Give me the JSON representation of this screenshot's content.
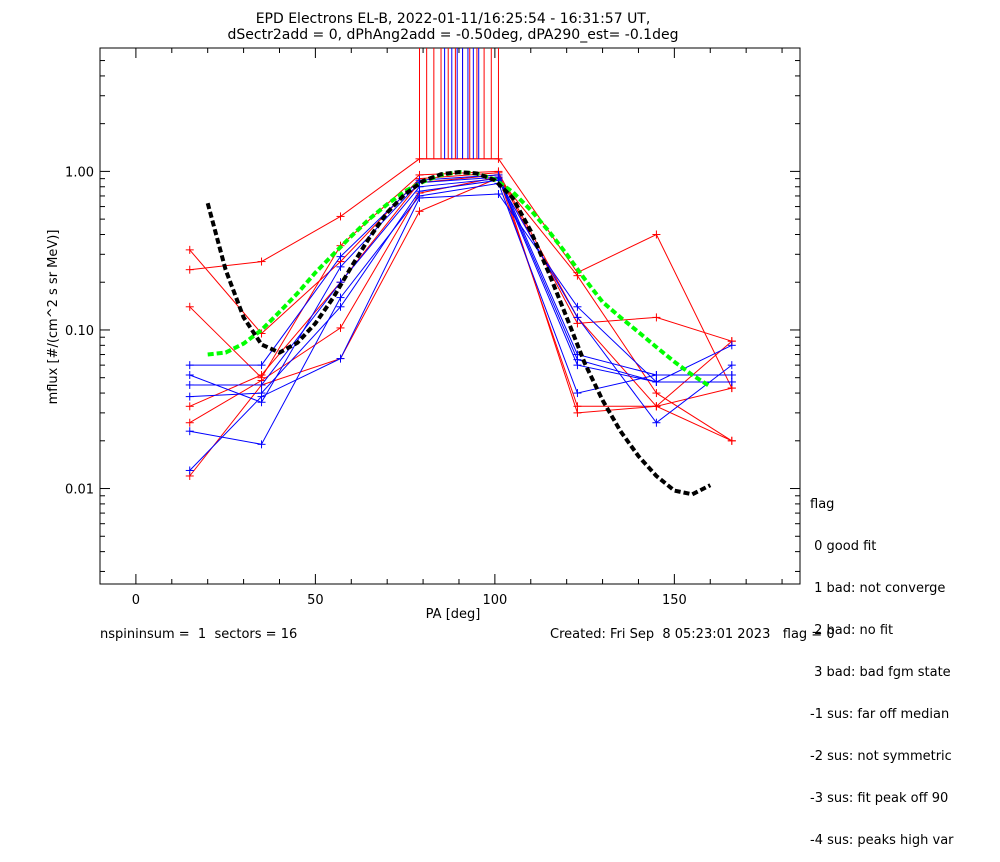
{
  "chart_data": {
    "type": "line",
    "title_lines": [
      "EPD Electrons EL-B, 2022-01-11/16:25:54 - 16:31:57 UT,",
      "dSectr2add = 0, dPhAng2add = -0.50deg, dPA290_est=  -0.1deg"
    ],
    "xlabel": "PA [deg]",
    "ylabel": "mflux [#/(cm^2 s sr MeV)]",
    "x_scale": "linear",
    "y_scale": "log",
    "xlim": [
      -10,
      185
    ],
    "ylim": [
      0.0025,
      6.0
    ],
    "x_ticks": [
      0,
      50,
      100,
      150
    ],
    "y_ticks": [
      0.01,
      0.1,
      1.0
    ],
    "y_tick_labels": [
      "0.01",
      "0.10",
      "1.00"
    ],
    "grid": false,
    "colors": {
      "red": "#ff0000",
      "blue": "#0000ff",
      "black": "#000000",
      "green": "#00ff00"
    },
    "red_series": [
      {
        "x": [
          15,
          35,
          57,
          79,
          101,
          123,
          145,
          166
        ],
        "y": [
          0.32,
          0.095,
          0.27,
          0.9,
          0.98,
          0.12,
          0.033,
          0.043
        ]
      },
      {
        "x": [
          15,
          35,
          57,
          79,
          101,
          123,
          145,
          166
        ],
        "y": [
          0.24,
          0.27,
          0.52,
          1.2,
          1.2,
          0.23,
          0.4,
          0.043
        ]
      },
      {
        "x": [
          15,
          35,
          57,
          79,
          101,
          123,
          145,
          166
        ],
        "y": [
          0.14,
          0.05,
          0.34,
          0.95,
          1.0,
          0.03,
          0.033,
          0.085
        ]
      },
      {
        "x": [
          15,
          35,
          57,
          79,
          101,
          123,
          145,
          166
        ],
        "y": [
          0.033,
          0.052,
          0.2,
          0.85,
          0.95,
          0.11,
          0.12,
          0.085
        ]
      },
      {
        "x": [
          15,
          35,
          57,
          79,
          101,
          123,
          145,
          166
        ],
        "y": [
          0.026,
          0.048,
          0.103,
          0.73,
          0.92,
          0.033,
          0.033,
          0.02
        ]
      },
      {
        "x": [
          15,
          35,
          57,
          79,
          101,
          123,
          145,
          166
        ],
        "y": [
          0.012,
          0.045,
          0.066,
          0.56,
          0.91,
          0.22,
          0.04,
          0.02
        ]
      }
    ],
    "red_offscale_pa": [
      79,
      81,
      83,
      85,
      87,
      89,
      91,
      93,
      95,
      97,
      99,
      101
    ],
    "blue_series": [
      {
        "x": [
          15,
          35,
          57,
          79,
          101,
          123,
          145,
          166
        ],
        "y": [
          0.06,
          0.06,
          0.29,
          0.88,
          0.95,
          0.07,
          0.052,
          0.052
        ]
      },
      {
        "x": [
          15,
          35,
          57,
          79,
          101,
          123,
          145,
          166
        ],
        "y": [
          0.052,
          0.035,
          0.25,
          0.85,
          0.92,
          0.065,
          0.047,
          0.08
        ]
      },
      {
        "x": [
          15,
          35,
          57,
          79,
          101,
          123,
          145,
          166
        ],
        "y": [
          0.045,
          0.045,
          0.2,
          0.8,
          0.9,
          0.06,
          0.047,
          0.047
        ]
      },
      {
        "x": [
          15,
          35,
          57,
          79,
          101,
          123,
          145,
          166
        ],
        "y": [
          0.038,
          0.04,
          0.14,
          0.75,
          0.88,
          0.12,
          0.026,
          0.06
        ]
      },
      {
        "x": [
          15,
          35,
          57,
          79,
          101,
          123,
          145,
          166
        ],
        "y": [
          0.023,
          0.019,
          0.16,
          0.7,
          0.84,
          0.04,
          0.052,
          0.052
        ]
      },
      {
        "x": [
          15,
          35,
          57,
          79,
          101,
          123,
          145,
          166
        ],
        "y": [
          0.013,
          0.038,
          0.066,
          0.68,
          0.72,
          0.14,
          0.047,
          0.047
        ]
      }
    ],
    "blue_offscale_pa": [
      86,
      88,
      89.5,
      91,
      92.5,
      94,
      95.5
    ],
    "black_fit_curve": {
      "x": [
        20,
        25,
        30,
        35,
        40,
        45,
        50,
        55,
        60,
        65,
        70,
        75,
        80,
        85,
        90,
        95,
        100,
        105,
        110,
        115,
        120,
        125,
        130,
        135,
        140,
        145,
        150,
        155,
        160
      ],
      "y": [
        0.63,
        0.24,
        0.12,
        0.081,
        0.072,
        0.083,
        0.11,
        0.16,
        0.25,
        0.38,
        0.55,
        0.72,
        0.87,
        0.96,
        0.99,
        0.97,
        0.88,
        0.68,
        0.42,
        0.23,
        0.12,
        0.062,
        0.036,
        0.023,
        0.016,
        0.012,
        0.0097,
        0.0092,
        0.0105
      ]
    },
    "green_fit_curve": {
      "x": [
        20,
        25,
        30,
        35,
        40,
        45,
        50,
        55,
        60,
        65,
        70,
        75,
        80,
        85,
        90,
        95,
        100,
        105,
        110,
        115,
        120,
        125,
        130,
        135,
        140,
        145,
        150,
        155,
        160
      ],
      "y": [
        0.07,
        0.072,
        0.082,
        0.1,
        0.13,
        0.17,
        0.23,
        0.3,
        0.39,
        0.5,
        0.62,
        0.75,
        0.86,
        0.95,
        0.99,
        0.97,
        0.89,
        0.74,
        0.57,
        0.42,
        0.3,
        0.21,
        0.15,
        0.12,
        0.097,
        0.078,
        0.063,
        0.052,
        0.044
      ]
    }
  },
  "legend": {
    "title": "flag",
    "entries": [
      " 0 good fit",
      " 1 bad: not converge",
      " 2 bad: no fit",
      " 3 bad: bad fgm state",
      "-1 sus: far off median",
      "-2 sus: not symmetric",
      "-3 sus: fit peak off 90",
      "-4 sus: peaks high var"
    ]
  },
  "footer": {
    "left": "nspininsum =  1  sectors = 16",
    "right": "Created: Fri Sep  8 05:23:01 2023   flag = 0"
  }
}
